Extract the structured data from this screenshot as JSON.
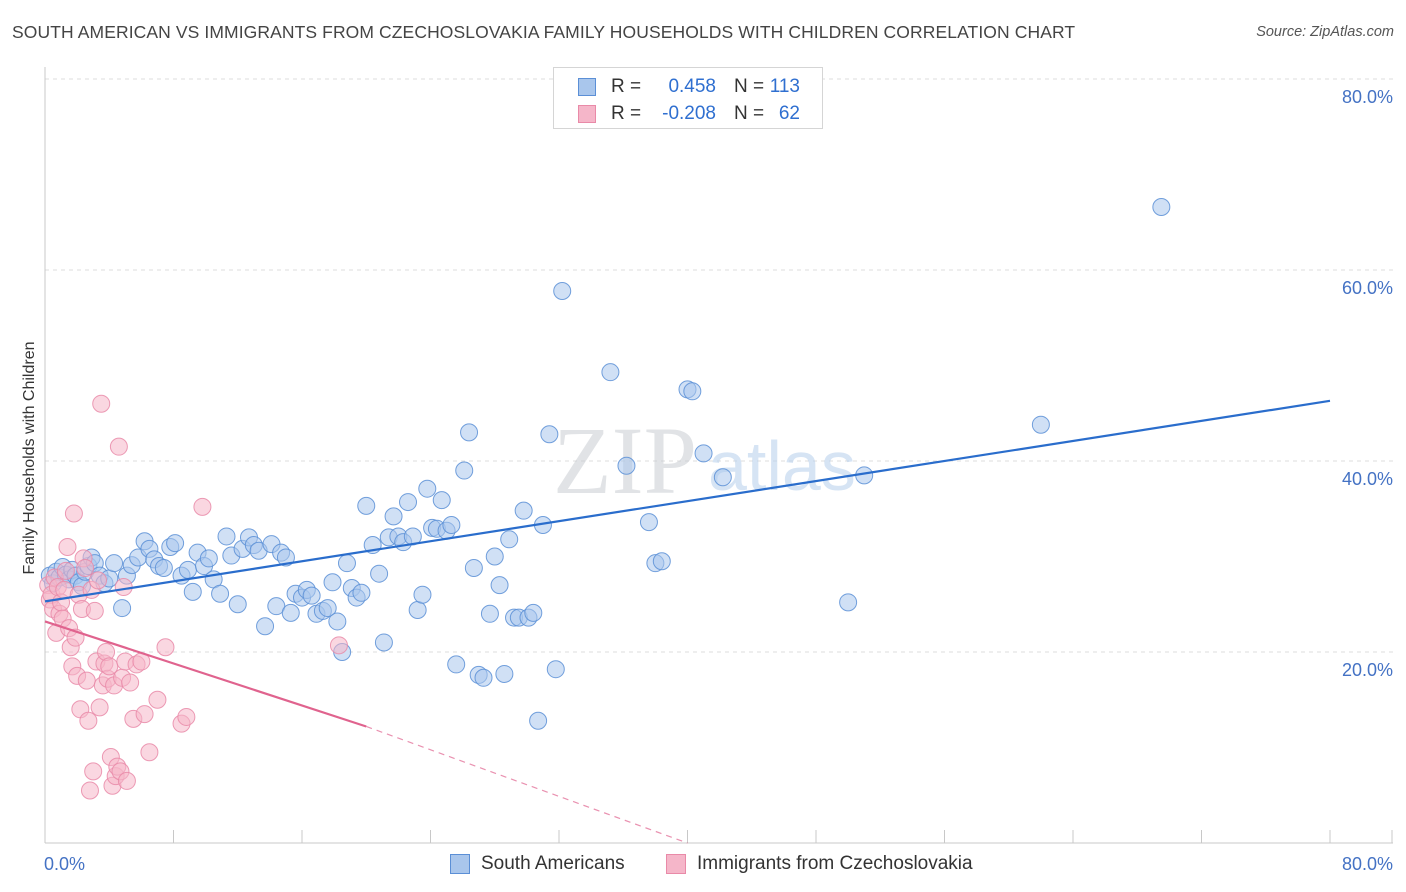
{
  "title": "SOUTH AMERICAN VS IMMIGRANTS FROM CZECHOSLOVAKIA FAMILY HOUSEHOLDS WITH CHILDREN CORRELATION CHART",
  "source": "Source: ZipAtlas.com",
  "watermark": {
    "zip": "ZIP",
    "atlas": "atlas"
  },
  "legend": {
    "rows": [
      {
        "r_label": "R =",
        "r_value": "0.458",
        "n_label": "N =",
        "n_value": "113"
      },
      {
        "r_label": "R =",
        "r_value": "-0.208",
        "n_label": "N =",
        "n_value": "62"
      }
    ]
  },
  "bottom_legend": {
    "items": [
      {
        "label": "South Americans"
      },
      {
        "label": "Immigrants from Czechoslovakia"
      }
    ]
  },
  "colors": {
    "blue_fill": "#a9c6ec",
    "blue_stroke": "#5b8fd6",
    "blue_line": "#2a6dcc",
    "pink_fill": "#f5b6c9",
    "pink_stroke": "#e98aa8",
    "pink_line": "#e0638e",
    "grid": "#dcdcdc",
    "axis": "#c8c8c8"
  },
  "chart_data": {
    "type": "scatter",
    "title": "SOUTH AMERICAN VS IMMIGRANTS FROM CZECHOSLOVAKIA FAMILY HOUSEHOLDS WITH CHILDREN CORRELATION CHART",
    "xlabel": "",
    "ylabel": "Family Households with Children",
    "xlim": [
      0,
      80
    ],
    "ylim": [
      0,
      80
    ],
    "x_tick_labels": [
      "0.0%",
      "80.0%"
    ],
    "y_ticks": [
      20,
      40,
      60,
      80
    ],
    "y_tick_labels": [
      "20.0%",
      "40.0%",
      "60.0%",
      "80.0%"
    ],
    "series": [
      {
        "name": "South Americans",
        "color": "#5b8fd6",
        "trend": {
          "x0": 0,
          "y0": 25.3,
          "x1": 80,
          "y1": 46.3,
          "dashed_to": null
        },
        "points": [
          [
            0.3,
            28.0
          ],
          [
            0.5,
            27.2
          ],
          [
            0.7,
            28.4
          ],
          [
            0.9,
            27.8
          ],
          [
            1.1,
            28.9
          ],
          [
            1.3,
            28.1
          ],
          [
            1.5,
            27.6
          ],
          [
            1.7,
            28.6
          ],
          [
            1.9,
            28.0
          ],
          [
            2.1,
            27.3
          ],
          [
            2.3,
            26.9
          ],
          [
            2.5,
            28.4
          ],
          [
            2.7,
            29.0
          ],
          [
            2.9,
            29.9
          ],
          [
            3.1,
            29.3
          ],
          [
            3.4,
            28.0
          ],
          [
            3.7,
            27.2
          ],
          [
            4.0,
            27.7
          ],
          [
            4.3,
            29.3
          ],
          [
            4.8,
            24.6
          ],
          [
            5.1,
            28.0
          ],
          [
            5.4,
            29.1
          ],
          [
            5.8,
            29.9
          ],
          [
            6.2,
            31.6
          ],
          [
            6.5,
            30.8
          ],
          [
            6.8,
            29.7
          ],
          [
            7.1,
            29.0
          ],
          [
            7.4,
            28.8
          ],
          [
            7.8,
            31.0
          ],
          [
            8.1,
            31.4
          ],
          [
            8.5,
            28.0
          ],
          [
            8.9,
            28.6
          ],
          [
            9.2,
            26.3
          ],
          [
            9.5,
            30.4
          ],
          [
            9.9,
            29.0
          ],
          [
            10.2,
            29.8
          ],
          [
            10.5,
            27.6
          ],
          [
            10.9,
            26.1
          ],
          [
            11.3,
            32.1
          ],
          [
            11.6,
            30.1
          ],
          [
            12.0,
            25.0
          ],
          [
            12.3,
            30.8
          ],
          [
            12.7,
            32.0
          ],
          [
            13.0,
            31.2
          ],
          [
            13.3,
            30.6
          ],
          [
            13.7,
            22.7
          ],
          [
            14.1,
            31.3
          ],
          [
            14.4,
            24.8
          ],
          [
            14.7,
            30.4
          ],
          [
            15.0,
            29.9
          ],
          [
            15.3,
            24.1
          ],
          [
            15.6,
            26.1
          ],
          [
            16.0,
            25.7
          ],
          [
            16.3,
            26.5
          ],
          [
            16.6,
            25.9
          ],
          [
            16.9,
            24.0
          ],
          [
            17.3,
            24.3
          ],
          [
            17.6,
            24.6
          ],
          [
            17.9,
            27.3
          ],
          [
            18.2,
            23.2
          ],
          [
            18.5,
            20.0
          ],
          [
            18.8,
            29.3
          ],
          [
            19.1,
            26.7
          ],
          [
            19.4,
            25.7
          ],
          [
            19.7,
            26.2
          ],
          [
            20.0,
            35.3
          ],
          [
            20.4,
            31.2
          ],
          [
            20.8,
            28.2
          ],
          [
            21.1,
            21.0
          ],
          [
            21.4,
            32.0
          ],
          [
            21.7,
            34.2
          ],
          [
            22.0,
            32.1
          ],
          [
            22.3,
            31.5
          ],
          [
            22.6,
            35.7
          ],
          [
            22.9,
            32.1
          ],
          [
            23.2,
            24.4
          ],
          [
            23.5,
            26.0
          ],
          [
            23.8,
            37.1
          ],
          [
            24.1,
            33.0
          ],
          [
            24.4,
            32.9
          ],
          [
            24.7,
            35.9
          ],
          [
            25.0,
            32.7
          ],
          [
            25.3,
            33.3
          ],
          [
            25.6,
            18.7
          ],
          [
            26.1,
            39.0
          ],
          [
            26.4,
            43.0
          ],
          [
            26.7,
            28.8
          ],
          [
            27.0,
            17.6
          ],
          [
            27.3,
            17.3
          ],
          [
            27.7,
            24.0
          ],
          [
            28.0,
            30.0
          ],
          [
            28.3,
            27.0
          ],
          [
            28.6,
            17.7
          ],
          [
            28.9,
            31.8
          ],
          [
            29.2,
            23.6
          ],
          [
            29.5,
            23.6
          ],
          [
            29.8,
            34.8
          ],
          [
            30.1,
            23.6
          ],
          [
            30.4,
            24.1
          ],
          [
            30.7,
            12.8
          ],
          [
            31.0,
            33.3
          ],
          [
            31.4,
            42.8
          ],
          [
            31.8,
            18.2
          ],
          [
            32.2,
            57.8
          ],
          [
            35.2,
            49.3
          ],
          [
            36.2,
            39.5
          ],
          [
            37.6,
            33.6
          ],
          [
            38.0,
            29.3
          ],
          [
            38.4,
            29.5
          ],
          [
            40.0,
            47.5
          ],
          [
            40.3,
            47.3
          ],
          [
            41.0,
            40.8
          ],
          [
            42.2,
            38.3
          ],
          [
            50.0,
            25.2
          ],
          [
            51.0,
            38.5
          ],
          [
            62.0,
            43.8
          ],
          [
            69.5,
            66.6
          ]
        ]
      },
      {
        "name": "Immigrants from Czechoslovakia",
        "color": "#e98aa8",
        "trend": {
          "x0": 0,
          "y0": 23.2,
          "x1": 20,
          "y1": 12.2,
          "dashed_to": [
            40,
            0.0
          ]
        },
        "points": [
          [
            0.2,
            27.0
          ],
          [
            0.3,
            25.5
          ],
          [
            0.4,
            26.0
          ],
          [
            0.5,
            24.5
          ],
          [
            0.6,
            27.8
          ],
          [
            0.7,
            22.0
          ],
          [
            0.8,
            26.8
          ],
          [
            0.9,
            24.0
          ],
          [
            1.0,
            25.2
          ],
          [
            1.1,
            23.5
          ],
          [
            1.2,
            26.5
          ],
          [
            1.3,
            28.5
          ],
          [
            1.4,
            31.0
          ],
          [
            1.5,
            22.5
          ],
          [
            1.6,
            20.5
          ],
          [
            1.7,
            18.5
          ],
          [
            1.8,
            34.5
          ],
          [
            1.9,
            21.5
          ],
          [
            2.0,
            17.5
          ],
          [
            2.1,
            26.0
          ],
          [
            2.2,
            14.0
          ],
          [
            2.3,
            24.5
          ],
          [
            2.4,
            29.8
          ],
          [
            2.5,
            28.8
          ],
          [
            2.6,
            17.0
          ],
          [
            2.7,
            12.8
          ],
          [
            2.8,
            5.5
          ],
          [
            2.9,
            26.5
          ],
          [
            3.0,
            7.5
          ],
          [
            3.1,
            24.3
          ],
          [
            3.2,
            19.0
          ],
          [
            3.3,
            27.5
          ],
          [
            3.4,
            14.2
          ],
          [
            3.5,
            46.0
          ],
          [
            3.6,
            16.5
          ],
          [
            3.7,
            18.8
          ],
          [
            3.8,
            20.0
          ],
          [
            3.9,
            17.2
          ],
          [
            4.0,
            18.5
          ],
          [
            4.1,
            9.0
          ],
          [
            4.2,
            6.0
          ],
          [
            4.3,
            16.5
          ],
          [
            4.4,
            7.0
          ],
          [
            4.5,
            8.0
          ],
          [
            4.6,
            41.5
          ],
          [
            4.7,
            7.5
          ],
          [
            4.8,
            17.3
          ],
          [
            4.9,
            26.8
          ],
          [
            5.0,
            19.0
          ],
          [
            5.1,
            6.5
          ],
          [
            5.3,
            16.8
          ],
          [
            5.5,
            13.0
          ],
          [
            5.7,
            18.7
          ],
          [
            6.0,
            19.0
          ],
          [
            6.2,
            13.5
          ],
          [
            6.5,
            9.5
          ],
          [
            7.0,
            15.0
          ],
          [
            7.5,
            20.5
          ],
          [
            8.5,
            12.5
          ],
          [
            8.8,
            13.2
          ],
          [
            9.8,
            35.2
          ],
          [
            18.3,
            20.7
          ]
        ]
      }
    ]
  }
}
